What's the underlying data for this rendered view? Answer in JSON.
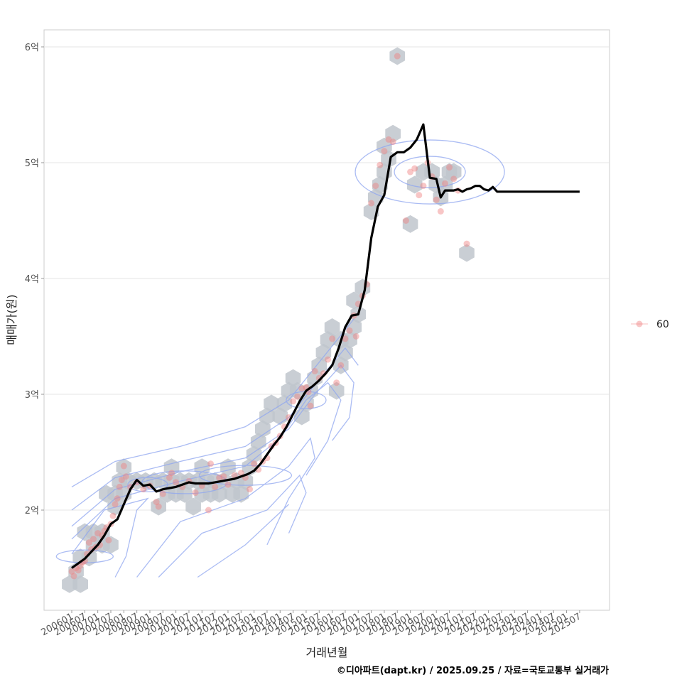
{
  "chart_data": {
    "type": "scatter",
    "title": "",
    "xlabel": "거래년월",
    "ylabel": "매매가(원)",
    "caption": "©디아파트(dapt.kr) / 2025.09.25 / 자료=국토교통부 실거래가",
    "x_tick_labels": [
      "200601",
      "200607",
      "200701",
      "200707",
      "200801",
      "200807",
      "200901",
      "200907",
      "201001",
      "201007",
      "201101",
      "201107",
      "201201",
      "201207",
      "201301",
      "201307",
      "201401",
      "201407",
      "201501",
      "201507",
      "201601",
      "201607",
      "201701",
      "201707",
      "201801",
      "201807",
      "201901",
      "201907",
      "202001",
      "202007",
      "202101",
      "202107",
      "202201",
      "202207",
      "202301",
      "202307",
      "202401",
      "202407",
      "202501",
      "202507"
    ],
    "y_ticks": [
      2,
      3,
      4,
      5,
      6
    ],
    "y_tick_labels": [
      "2억",
      "3억",
      "4억",
      "5억",
      "6억"
    ],
    "y_unit": "억",
    "xlim_month_index": [
      -12,
      240
    ],
    "ylim": [
      1.15,
      6.15
    ],
    "grid": true,
    "legend": {
      "position": "right",
      "entries": [
        {
          "label": "60",
          "color": "#f08080"
        }
      ]
    },
    "colors": {
      "points": "#f08080",
      "line": "#000000",
      "hex": "#bfc5cc",
      "hex_light": "#d8e6f5",
      "contour": "#8fa6f0",
      "grid": "#e5e5e5",
      "panel_border": "#cccccc"
    },
    "series": [
      {
        "name": "moving_average",
        "x_month_index": [
          0,
          3,
          6,
          9,
          12,
          15,
          18,
          21,
          24,
          27,
          30,
          33,
          36,
          39,
          42,
          45,
          48,
          51,
          54,
          57,
          60,
          63,
          66,
          69,
          72,
          75,
          78,
          81,
          84,
          87,
          90,
          93,
          96,
          99,
          102,
          105,
          108,
          111,
          114,
          117,
          120,
          123,
          126,
          129,
          132,
          135,
          138,
          141,
          144,
          147,
          150,
          153,
          156,
          159,
          162,
          165,
          168,
          170,
          172,
          174,
          176,
          178,
          180,
          182,
          184,
          186,
          188,
          190,
          192,
          194,
          196,
          198,
          200,
          202,
          203,
          204,
          205,
          206,
          207,
          208,
          210,
          212,
          214,
          216,
          218,
          220,
          222,
          224,
          226,
          228,
          230,
          232,
          234
        ],
        "y": [
          1.5,
          1.54,
          1.58,
          1.64,
          1.7,
          1.78,
          1.88,
          1.92,
          2.05,
          2.18,
          2.26,
          2.21,
          2.22,
          2.16,
          2.18,
          2.19,
          2.2,
          2.22,
          2.24,
          2.23,
          2.23,
          2.23,
          2.24,
          2.25,
          2.26,
          2.27,
          2.29,
          2.31,
          2.34,
          2.4,
          2.48,
          2.56,
          2.63,
          2.72,
          2.83,
          2.94,
          3.03,
          3.07,
          3.12,
          3.18,
          3.25,
          3.4,
          3.58,
          3.68,
          3.69,
          3.9,
          4.35,
          4.62,
          4.72,
          5.05,
          5.09,
          5.09,
          5.13,
          5.2,
          5.33,
          4.87,
          4.86,
          4.7,
          4.76,
          4.76,
          4.76,
          4.77,
          4.75,
          4.77,
          4.78,
          4.8,
          4.8,
          4.77,
          4.76,
          4.79,
          4.75,
          4.75,
          4.75,
          4.75,
          4.75,
          4.75,
          4.75,
          4.75,
          4.75,
          4.75,
          4.75,
          4.75,
          4.75,
          4.75,
          4.75,
          4.75,
          4.75,
          4.75,
          4.75,
          4.75,
          4.75,
          4.75,
          4.75
        ]
      },
      {
        "name": "60",
        "points": [
          [
            0,
            1.47
          ],
          [
            1,
            1.43
          ],
          [
            2,
            1.5
          ],
          [
            3,
            1.48
          ],
          [
            4,
            1.52
          ],
          [
            5,
            1.55
          ],
          [
            6,
            1.56
          ],
          [
            7,
            1.62
          ],
          [
            8,
            1.72
          ],
          [
            9,
            1.66
          ],
          [
            10,
            1.75
          ],
          [
            11,
            1.68
          ],
          [
            12,
            1.8
          ],
          [
            13,
            1.7
          ],
          [
            14,
            1.78
          ],
          [
            15,
            1.82
          ],
          [
            16,
            1.85
          ],
          [
            17,
            1.74
          ],
          [
            18,
            1.88
          ],
          [
            19,
            1.95
          ],
          [
            20,
            2.05
          ],
          [
            21,
            2.1
          ],
          [
            22,
            2.2
          ],
          [
            23,
            2.26
          ],
          [
            24,
            2.38
          ],
          [
            25,
            2.29
          ],
          [
            27,
            2.2
          ],
          [
            30,
            2.24
          ],
          [
            33,
            2.18
          ],
          [
            36,
            2.21
          ],
          [
            39,
            2.07
          ],
          [
            40,
            2.03
          ],
          [
            42,
            2.14
          ],
          [
            45,
            2.28
          ],
          [
            46,
            2.32
          ],
          [
            48,
            2.24
          ],
          [
            51,
            2.2
          ],
          [
            54,
            2.25
          ],
          [
            57,
            2.15
          ],
          [
            60,
            2.21
          ],
          [
            63,
            2.0
          ],
          [
            64,
            2.4
          ],
          [
            66,
            2.2
          ],
          [
            68,
            2.28
          ],
          [
            70,
            2.29
          ],
          [
            72,
            2.22
          ],
          [
            75,
            2.3
          ],
          [
            78,
            2.32
          ],
          [
            80,
            2.28
          ],
          [
            82,
            2.18
          ],
          [
            84,
            2.4
          ],
          [
            86,
            2.35
          ],
          [
            88,
            2.42
          ],
          [
            90,
            2.45
          ],
          [
            92,
            2.55
          ],
          [
            94,
            2.58
          ],
          [
            96,
            2.64
          ],
          [
            98,
            2.72
          ],
          [
            100,
            2.8
          ],
          [
            102,
            2.94
          ],
          [
            104,
            2.98
          ],
          [
            106,
            3.05
          ],
          [
            108,
            3.06
          ],
          [
            109,
            3.02
          ],
          [
            110,
            2.9
          ],
          [
            112,
            3.2
          ],
          [
            114,
            3.14
          ],
          [
            116,
            3.18
          ],
          [
            118,
            3.3
          ],
          [
            120,
            3.48
          ],
          [
            122,
            3.1
          ],
          [
            124,
            3.25
          ],
          [
            126,
            3.48
          ],
          [
            128,
            3.55
          ],
          [
            130,
            3.68
          ],
          [
            131,
            3.5
          ],
          [
            132,
            3.78
          ],
          [
            134,
            3.85
          ],
          [
            136,
            3.95
          ],
          [
            138,
            4.65
          ],
          [
            140,
            4.8
          ],
          [
            142,
            4.98
          ],
          [
            144,
            5.1
          ],
          [
            146,
            5.2
          ],
          [
            148,
            5.18
          ],
          [
            150,
            5.92
          ],
          [
            154,
            4.5
          ],
          [
            156,
            4.92
          ],
          [
            158,
            4.95
          ],
          [
            160,
            4.72
          ],
          [
            162,
            4.8
          ],
          [
            164,
            5.0
          ],
          [
            166,
            4.88
          ],
          [
            168,
            4.68
          ],
          [
            170,
            4.58
          ],
          [
            172,
            4.82
          ],
          [
            174,
            4.96
          ],
          [
            176,
            4.86
          ],
          [
            178,
            4.76
          ],
          [
            182,
            4.3
          ]
        ]
      }
    ],
    "hexbins": [
      [
        -1,
        1.36
      ],
      [
        4,
        1.36
      ],
      [
        2,
        1.47
      ],
      [
        4,
        1.59
      ],
      [
        8,
        1.59
      ],
      [
        10,
        1.7
      ],
      [
        14,
        1.7
      ],
      [
        18,
        1.7
      ],
      [
        6,
        1.81
      ],
      [
        10,
        1.81
      ],
      [
        14,
        1.81
      ],
      [
        20,
        2.03
      ],
      [
        16,
        2.14
      ],
      [
        20,
        2.14
      ],
      [
        24,
        2.14
      ],
      [
        22,
        2.25
      ],
      [
        26,
        2.25
      ],
      [
        24,
        2.37
      ],
      [
        30,
        2.25
      ],
      [
        34,
        2.25
      ],
      [
        38,
        2.25
      ],
      [
        42,
        2.25
      ],
      [
        40,
        2.03
      ],
      [
        46,
        2.25
      ],
      [
        44,
        2.14
      ],
      [
        48,
        2.14
      ],
      [
        46,
        2.37
      ],
      [
        50,
        2.25
      ],
      [
        54,
        2.25
      ],
      [
        52,
        2.14
      ],
      [
        56,
        2.03
      ],
      [
        60,
        2.14
      ],
      [
        58,
        2.25
      ],
      [
        62,
        2.25
      ],
      [
        60,
        2.37
      ],
      [
        64,
        2.14
      ],
      [
        66,
        2.25
      ],
      [
        70,
        2.25
      ],
      [
        68,
        2.14
      ],
      [
        74,
        2.14
      ],
      [
        72,
        2.37
      ],
      [
        78,
        2.14
      ],
      [
        76,
        2.25
      ],
      [
        80,
        2.25
      ],
      [
        82,
        2.37
      ],
      [
        84,
        2.48
      ],
      [
        86,
        2.59
      ],
      [
        88,
        2.7
      ],
      [
        90,
        2.81
      ],
      [
        92,
        2.92
      ],
      [
        96,
        2.81
      ],
      [
        98,
        2.92
      ],
      [
        100,
        3.03
      ],
      [
        104,
        3.03
      ],
      [
        102,
        3.14
      ],
      [
        106,
        2.81
      ],
      [
        108,
        2.92
      ],
      [
        110,
        3.03
      ],
      [
        112,
        3.14
      ],
      [
        114,
        3.25
      ],
      [
        116,
        3.36
      ],
      [
        118,
        3.47
      ],
      [
        120,
        3.58
      ],
      [
        124,
        3.47
      ],
      [
        126,
        3.36
      ],
      [
        124,
        3.25
      ],
      [
        122,
        3.03
      ],
      [
        128,
        3.47
      ],
      [
        130,
        3.58
      ],
      [
        132,
        3.69
      ],
      [
        130,
        3.81
      ],
      [
        134,
        3.92
      ],
      [
        138,
        4.58
      ],
      [
        140,
        4.7
      ],
      [
        142,
        4.81
      ],
      [
        144,
        4.92
      ],
      [
        146,
        5.03
      ],
      [
        144,
        5.14
      ],
      [
        148,
        5.25
      ],
      [
        150,
        5.92
      ],
      [
        156,
        4.47
      ],
      [
        158,
        4.81
      ],
      [
        162,
        4.92
      ],
      [
        166,
        4.92
      ],
      [
        168,
        4.81
      ],
      [
        170,
        4.7
      ],
      [
        172,
        4.81
      ],
      [
        174,
        4.92
      ],
      [
        176,
        4.92
      ],
      [
        182,
        4.22
      ]
    ]
  }
}
